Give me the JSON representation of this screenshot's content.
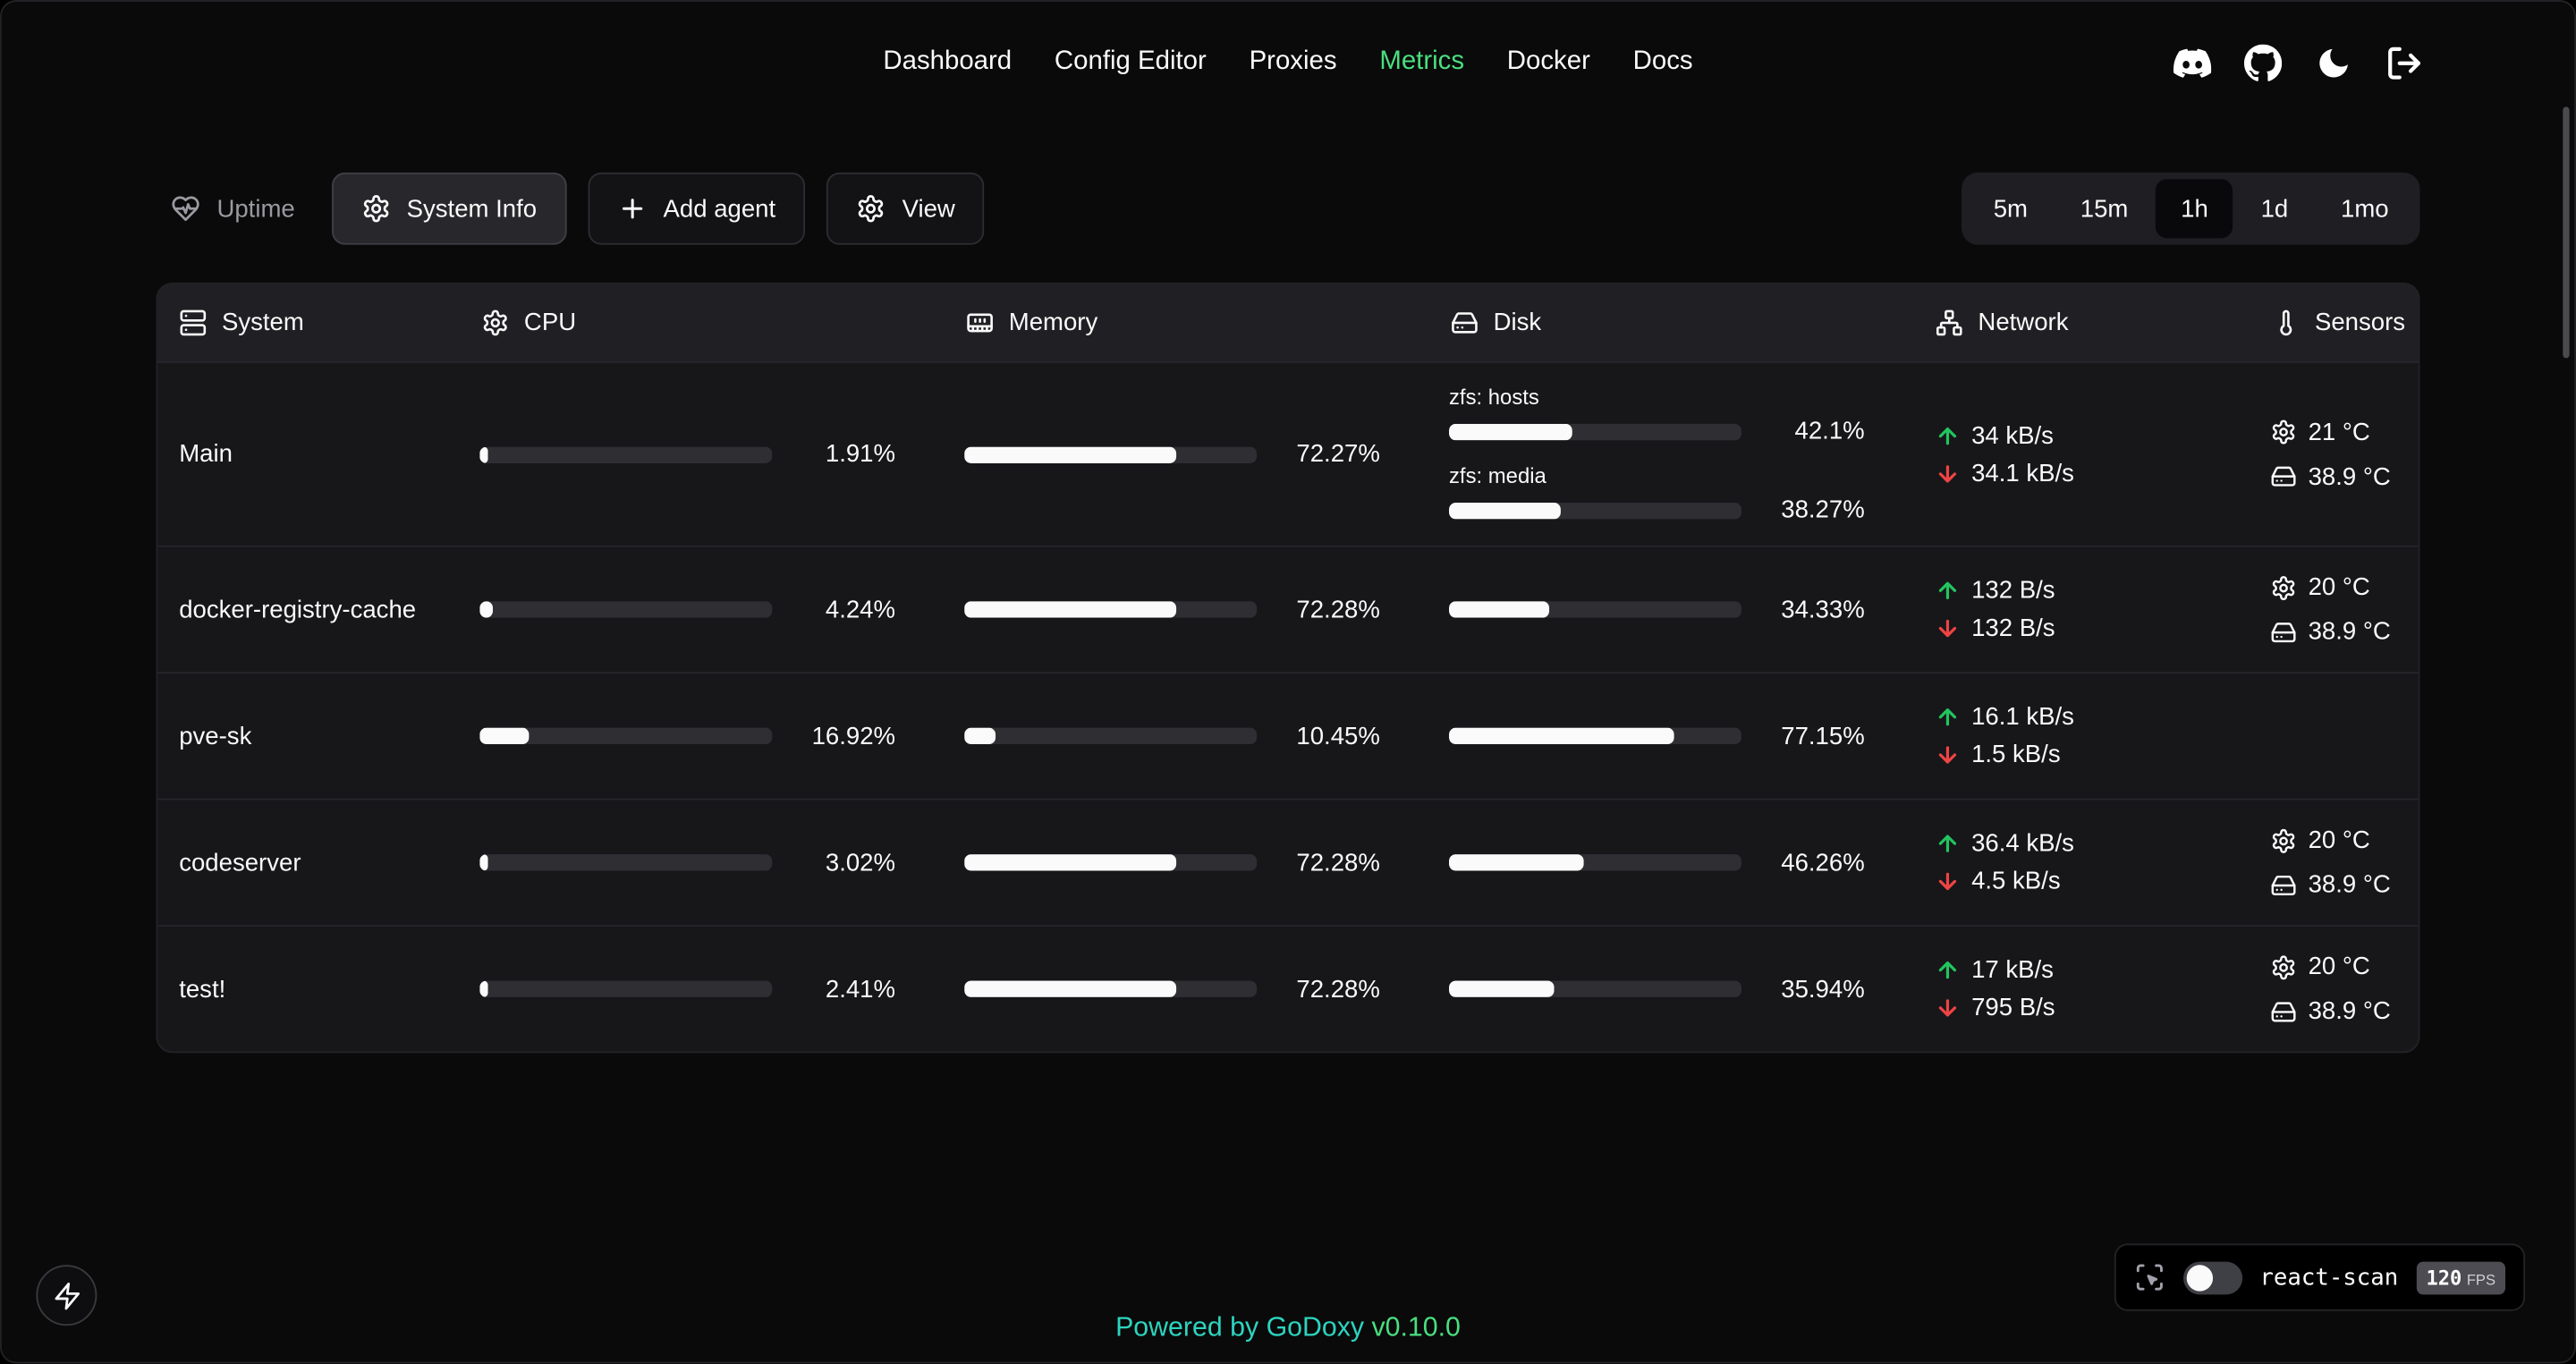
{
  "nav": {
    "items": [
      {
        "label": "Dashboard",
        "active": false
      },
      {
        "label": "Config Editor",
        "active": false
      },
      {
        "label": "Proxies",
        "active": false
      },
      {
        "label": "Metrics",
        "active": true
      },
      {
        "label": "Docker",
        "active": false
      },
      {
        "label": "Docs",
        "active": false
      }
    ],
    "icon_buttons": [
      {
        "icon": "discord-icon"
      },
      {
        "icon": "github-icon"
      },
      {
        "icon": "moon-icon"
      },
      {
        "icon": "logout-icon"
      }
    ]
  },
  "toolbar": {
    "uptime_label": "Uptime",
    "system_info_label": "System Info",
    "add_agent_label": "Add agent",
    "view_label": "View",
    "time_ranges": [
      "5m",
      "15m",
      "1h",
      "1d",
      "1mo"
    ],
    "active_time_range": "1h"
  },
  "table": {
    "columns": [
      {
        "label": "System",
        "icon": "server-icon"
      },
      {
        "label": "CPU",
        "icon": "gear-icon"
      },
      {
        "label": "Memory",
        "icon": "memory-icon"
      },
      {
        "label": "Disk",
        "icon": "disk-icon"
      },
      {
        "label": "Network",
        "icon": "network-icon"
      },
      {
        "label": "Sensors",
        "icon": "thermometer-icon"
      }
    ],
    "rows": [
      {
        "name": "Main",
        "cpu": {
          "percent": 1.91,
          "label": "1.91%"
        },
        "memory": {
          "percent": 72.27,
          "label": "72.27%"
        },
        "disks": [
          {
            "label": "zfs: hosts",
            "percent": 42.1,
            "text": "42.1%"
          },
          {
            "label": "zfs: media",
            "percent": 38.27,
            "text": "38.27%"
          }
        ],
        "network": {
          "upload": "34 kB/s",
          "download": "34.1 kB/s"
        },
        "sensors": [
          {
            "icon": "gear-icon",
            "value": "21 °C"
          },
          {
            "icon": "disk-icon",
            "value": "38.9 °C"
          }
        ]
      },
      {
        "name": "docker-registry-cache",
        "cpu": {
          "percent": 4.24,
          "label": "4.24%"
        },
        "memory": {
          "percent": 72.28,
          "label": "72.28%"
        },
        "disks": [
          {
            "label": null,
            "percent": 34.33,
            "text": "34.33%"
          }
        ],
        "network": {
          "upload": "132 B/s",
          "download": "132 B/s"
        },
        "sensors": [
          {
            "icon": "gear-icon",
            "value": "20 °C"
          },
          {
            "icon": "disk-icon",
            "value": "38.9 °C"
          }
        ]
      },
      {
        "name": "pve-sk",
        "cpu": {
          "percent": 16.92,
          "label": "16.92%"
        },
        "memory": {
          "percent": 10.45,
          "label": "10.45%"
        },
        "disks": [
          {
            "label": null,
            "percent": 77.15,
            "text": "77.15%"
          }
        ],
        "network": {
          "upload": "16.1 kB/s",
          "download": "1.5 kB/s"
        },
        "sensors": []
      },
      {
        "name": "codeserver",
        "cpu": {
          "percent": 3.02,
          "label": "3.02%"
        },
        "memory": {
          "percent": 72.28,
          "label": "72.28%"
        },
        "disks": [
          {
            "label": null,
            "percent": 46.26,
            "text": "46.26%"
          }
        ],
        "network": {
          "upload": "36.4 kB/s",
          "download": "4.5 kB/s"
        },
        "sensors": [
          {
            "icon": "gear-icon",
            "value": "20 °C"
          },
          {
            "icon": "disk-icon",
            "value": "38.9 °C"
          }
        ]
      },
      {
        "name": "test!",
        "cpu": {
          "percent": 2.41,
          "label": "2.41%"
        },
        "memory": {
          "percent": 72.28,
          "label": "72.28%"
        },
        "disks": [
          {
            "label": null,
            "percent": 35.94,
            "text": "35.94%"
          }
        ],
        "network": {
          "upload": "17 kB/s",
          "download": "795 B/s"
        },
        "sensors": [
          {
            "icon": "gear-icon",
            "value": "20 °C"
          },
          {
            "icon": "disk-icon",
            "value": "38.9 °C"
          }
        ]
      }
    ]
  },
  "footer": {
    "powered_by": "Powered by",
    "brand": "GoDoxy",
    "version": "v0.10.0"
  },
  "react_scan": {
    "label": "react-scan",
    "fps_value": "120",
    "fps_unit": "FPS",
    "toggle_state": "off"
  },
  "colors": {
    "accent_green": "#4ade80",
    "teal": "#2dd4bf",
    "upload_green": "#22c55e",
    "download_red": "#ef4444",
    "bar_fill": "#fafafa",
    "bar_track": "#2e2e33"
  }
}
